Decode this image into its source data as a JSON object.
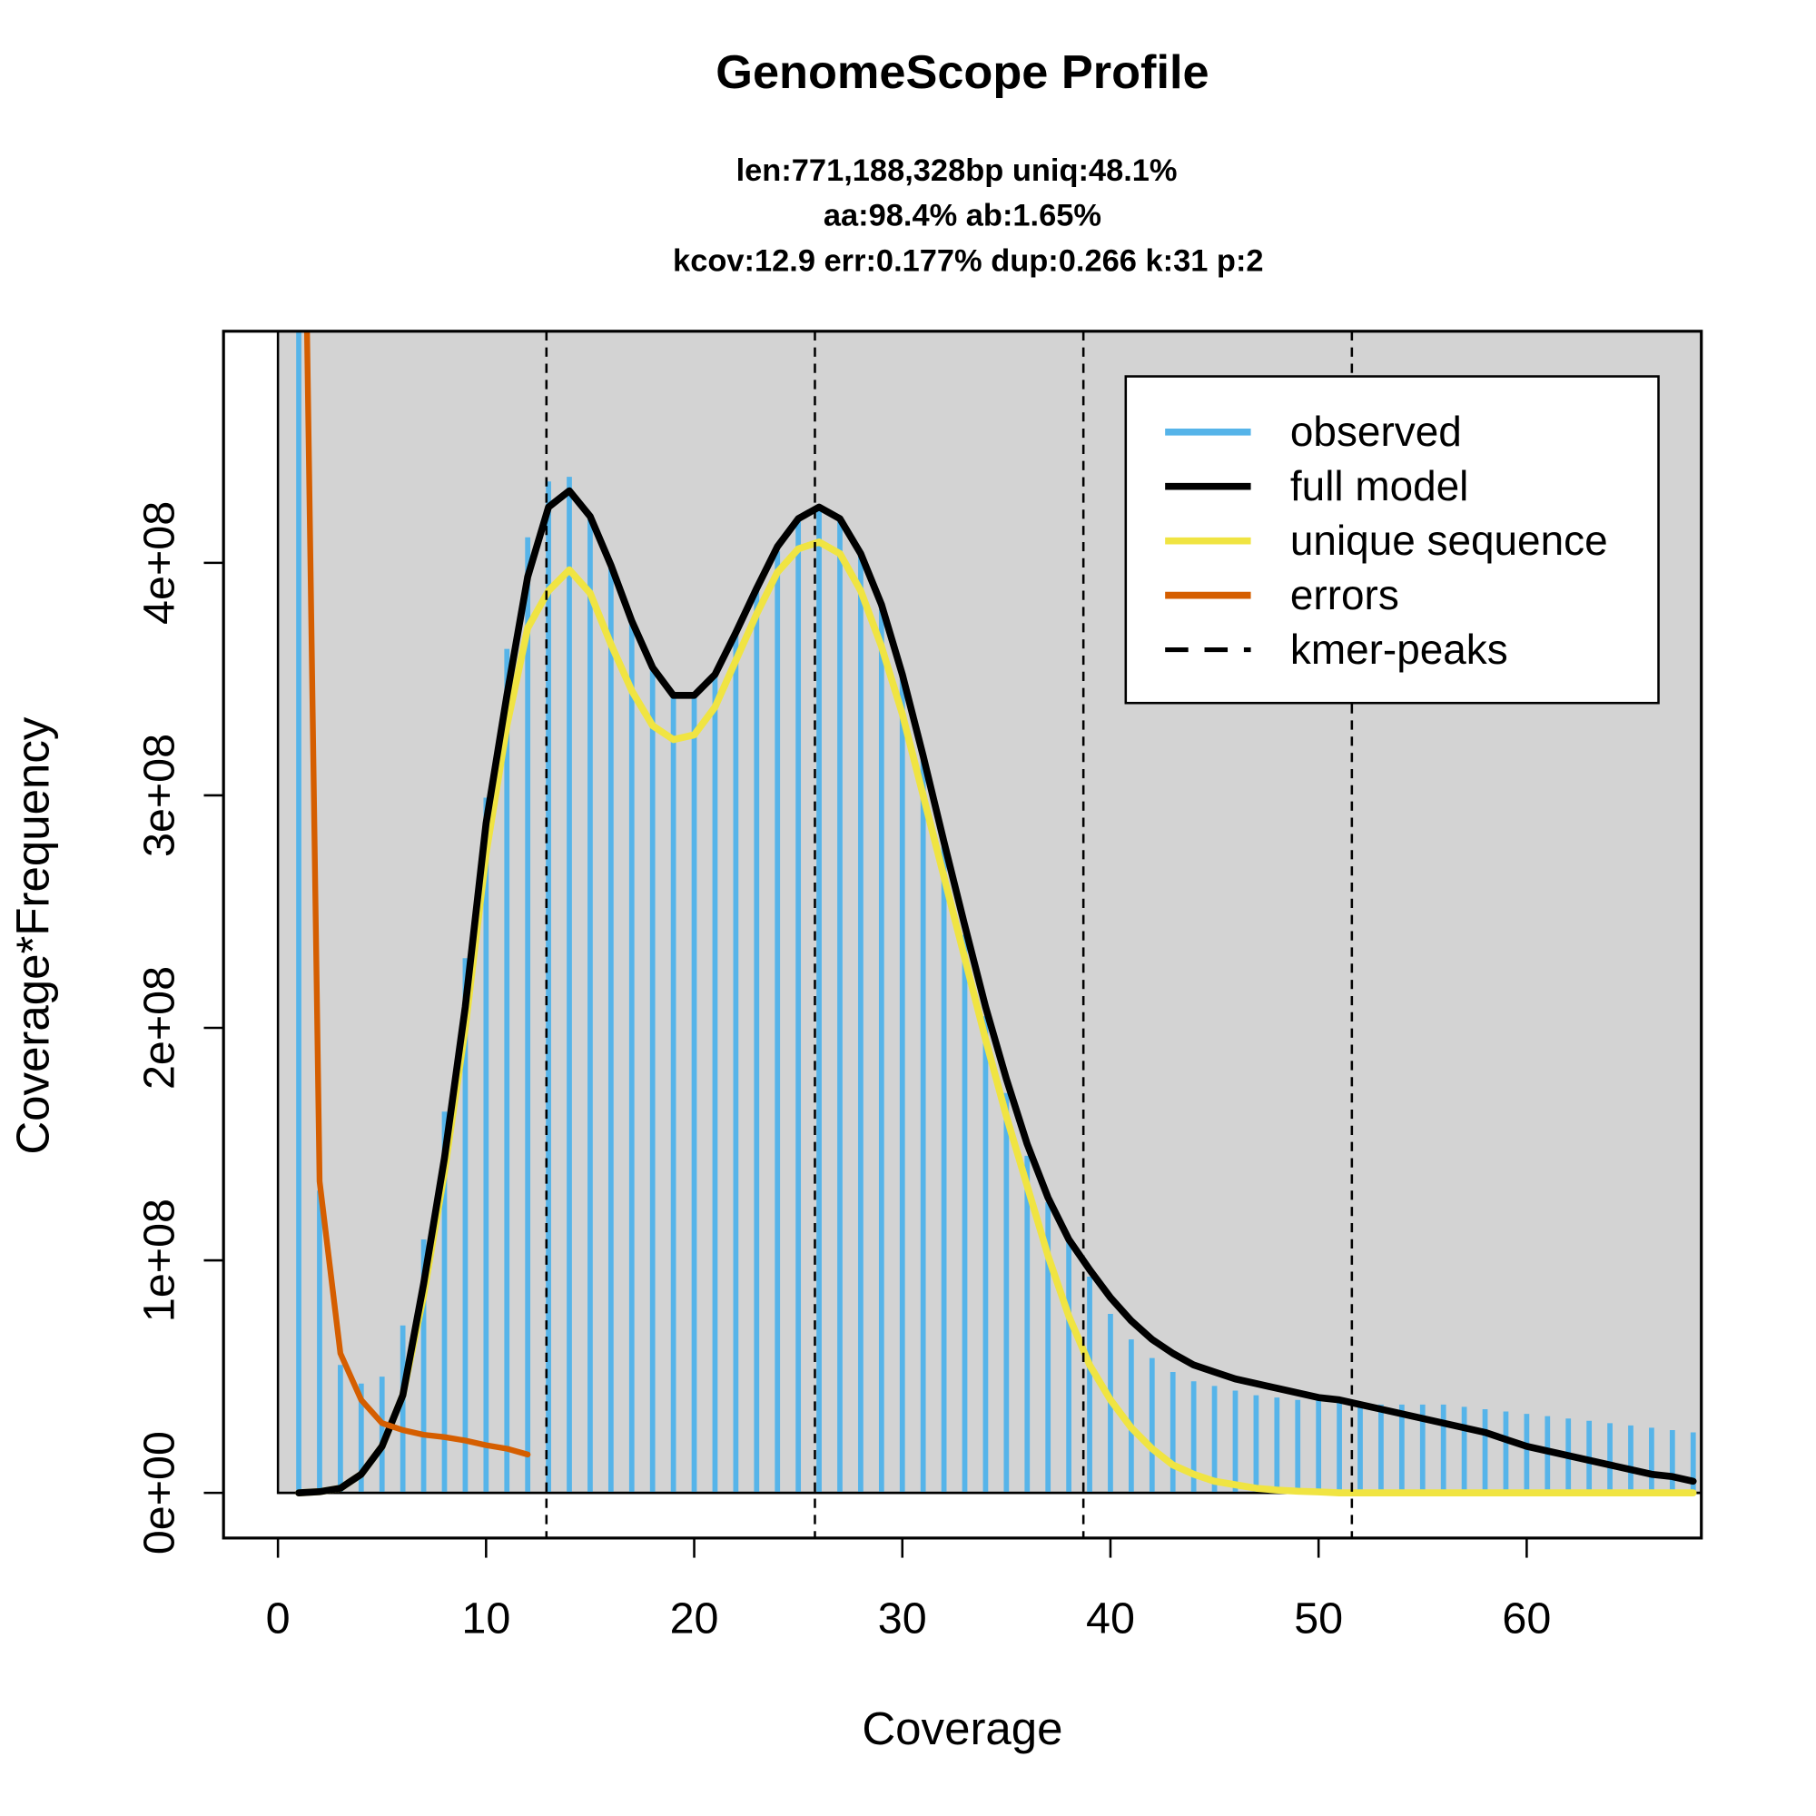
{
  "chart_data": {
    "type": "bar+line",
    "title": "GenomeScope Profile",
    "subtitle": [
      "len:771,188,328bp uniq:48.1%",
      "aa:98.4% ab:1.65%",
      "kcov:12.9 err:0.177%  dup:0.266  k:31 p:2"
    ],
    "xlabel": "Coverage",
    "ylabel": "Coverage*Frequency",
    "xlim": [
      -2.6,
      68.4
    ],
    "ylim": [
      -19400000,
      500000000
    ],
    "xticks": [
      0,
      10,
      20,
      30,
      40,
      50,
      60
    ],
    "xtick_labels": [
      "0",
      "10",
      "20",
      "30",
      "40",
      "50",
      "60"
    ],
    "yticks": [
      0,
      100000000,
      200000000,
      300000000,
      400000000
    ],
    "ytick_labels": [
      "0e+00",
      "1e+08",
      "2e+08",
      "3e+08",
      "4e+08"
    ],
    "legend": {
      "placement": "top-right",
      "entries": [
        {
          "label": "observed",
          "color": "#56B4E9",
          "style": "solid"
        },
        {
          "label": "full model",
          "color": "#000000",
          "style": "solid"
        },
        {
          "label": "unique sequence",
          "color": "#F0E442",
          "style": "solid"
        },
        {
          "label": "errors",
          "color": "#D55E00",
          "style": "solid"
        },
        {
          "label": "kmer-peaks",
          "color": "#000000",
          "style": "dashed"
        }
      ]
    },
    "background_color": "#D3D3D3",
    "units": 100000000,
    "coverage": [
      1,
      2,
      3,
      4,
      5,
      6,
      7,
      8,
      9,
      10,
      11,
      12,
      13,
      14,
      15,
      16,
      17,
      18,
      19,
      20,
      21,
      22,
      23,
      24,
      25,
      26,
      27,
      28,
      29,
      30,
      31,
      32,
      33,
      34,
      35,
      36,
      37,
      38,
      39,
      40,
      41,
      42,
      43,
      44,
      45,
      46,
      47,
      48,
      49,
      50,
      51,
      52,
      53,
      54,
      55,
      56,
      57,
      58,
      59,
      60,
      61,
      62,
      63,
      64,
      65,
      66,
      67,
      68
    ],
    "series": [
      {
        "name": "observed",
        "type": "bar",
        "color": "#56B4E9",
        "values": [
          12.0,
          1.3,
          0.55,
          0.47,
          0.5,
          0.72,
          1.09,
          1.64,
          2.3,
          2.99,
          3.63,
          4.11,
          4.35,
          4.37,
          4.2,
          4.0,
          3.75,
          3.55,
          3.43,
          3.42,
          3.52,
          3.7,
          3.88,
          4.05,
          4.18,
          4.23,
          4.18,
          4.03,
          3.8,
          3.5,
          3.15,
          2.78,
          2.4,
          2.05,
          1.72,
          1.45,
          1.25,
          1.08,
          0.93,
          0.77,
          0.66,
          0.58,
          0.52,
          0.48,
          0.46,
          0.44,
          0.42,
          0.41,
          0.4,
          0.4,
          0.39,
          0.38,
          0.38,
          0.38,
          0.38,
          0.38,
          0.37,
          0.36,
          0.35,
          0.34,
          0.33,
          0.32,
          0.31,
          0.3,
          0.29,
          0.28,
          0.27,
          0.26
        ]
      },
      {
        "name": "full model",
        "type": "line",
        "color": "#000000",
        "values": [
          0.0,
          0.005,
          0.02,
          0.08,
          0.2,
          0.42,
          0.9,
          1.44,
          2.09,
          2.88,
          3.43,
          3.94,
          4.24,
          4.31,
          4.2,
          3.99,
          3.75,
          3.55,
          3.43,
          3.43,
          3.52,
          3.7,
          3.89,
          4.07,
          4.19,
          4.24,
          4.19,
          4.04,
          3.82,
          3.52,
          3.17,
          2.8,
          2.44,
          2.09,
          1.78,
          1.5,
          1.27,
          1.09,
          0.96,
          0.84,
          0.74,
          0.66,
          0.6,
          0.55,
          0.52,
          0.49,
          0.47,
          0.45,
          0.43,
          0.41,
          0.4,
          0.38,
          0.36,
          0.34,
          0.32,
          0.3,
          0.28,
          0.26,
          0.23,
          0.2,
          0.18,
          0.16,
          0.14,
          0.12,
          0.1,
          0.08,
          0.07,
          0.05
        ]
      },
      {
        "name": "unique sequence",
        "type": "line",
        "color": "#F0E442",
        "values": [
          0.0,
          0.005,
          0.02,
          0.08,
          0.2,
          0.42,
          0.85,
          1.38,
          2.0,
          2.75,
          3.3,
          3.72,
          3.88,
          3.97,
          3.87,
          3.65,
          3.45,
          3.3,
          3.24,
          3.26,
          3.38,
          3.58,
          3.78,
          3.96,
          4.06,
          4.09,
          4.04,
          3.88,
          3.64,
          3.35,
          3.0,
          2.65,
          2.3,
          1.95,
          1.62,
          1.32,
          1.02,
          0.76,
          0.55,
          0.4,
          0.28,
          0.19,
          0.12,
          0.08,
          0.05,
          0.035,
          0.02,
          0.012,
          0.007,
          0.004,
          0,
          0,
          0,
          0,
          0,
          0,
          0,
          0,
          0,
          0,
          0,
          0,
          0,
          0,
          0,
          0,
          0,
          0
        ]
      },
      {
        "name": "errors",
        "type": "line",
        "color": "#D55E00",
        "coverage": [
          1,
          2,
          3,
          4,
          5,
          6,
          7,
          8,
          9,
          10,
          11,
          12
        ],
        "values": [
          7.4,
          1.34,
          0.6,
          0.4,
          0.3,
          0.27,
          0.25,
          0.24,
          0.225,
          0.205,
          0.19,
          0.165
        ]
      }
    ],
    "kmer_peaks": [
      12.9,
      25.8,
      38.7,
      51.6
    ]
  }
}
